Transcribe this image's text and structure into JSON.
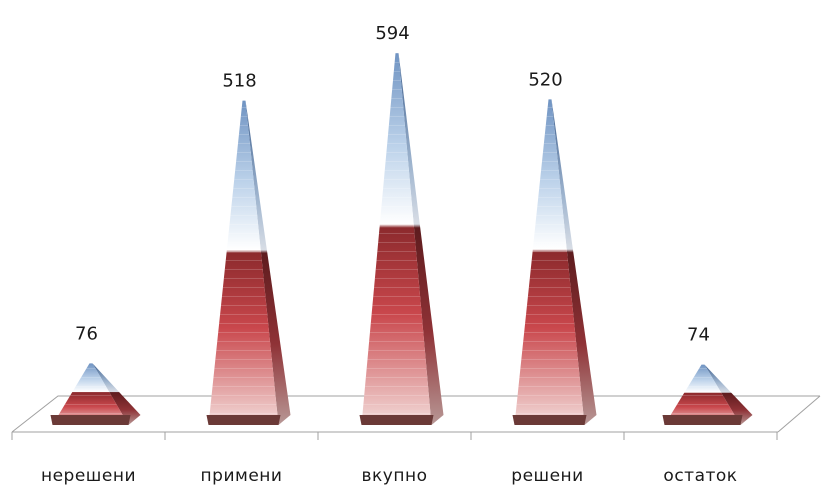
{
  "chart_data": {
    "type": "bar",
    "bar_shape": "pyramid-3d",
    "categories": [
      "нерешени",
      "примени",
      "вкупно",
      "решени",
      "остаток"
    ],
    "values": [
      76,
      518,
      594,
      520,
      74
    ],
    "data_labels": [
      "76",
      "518",
      "594",
      "520",
      "74"
    ],
    "ylim": [
      0,
      594
    ],
    "grid": false,
    "legend": "none",
    "colors": {
      "lower_dark": "#7a1e22",
      "lower_mid": "#c8464c",
      "lower_light": "#f1d3d1",
      "upper_light": "#ffffff",
      "upper_mid": "#c9dbee",
      "upper_dark": "#3d6ea8",
      "base_band": "#6b3a37",
      "floor_line": "#9a9a9a"
    }
  }
}
